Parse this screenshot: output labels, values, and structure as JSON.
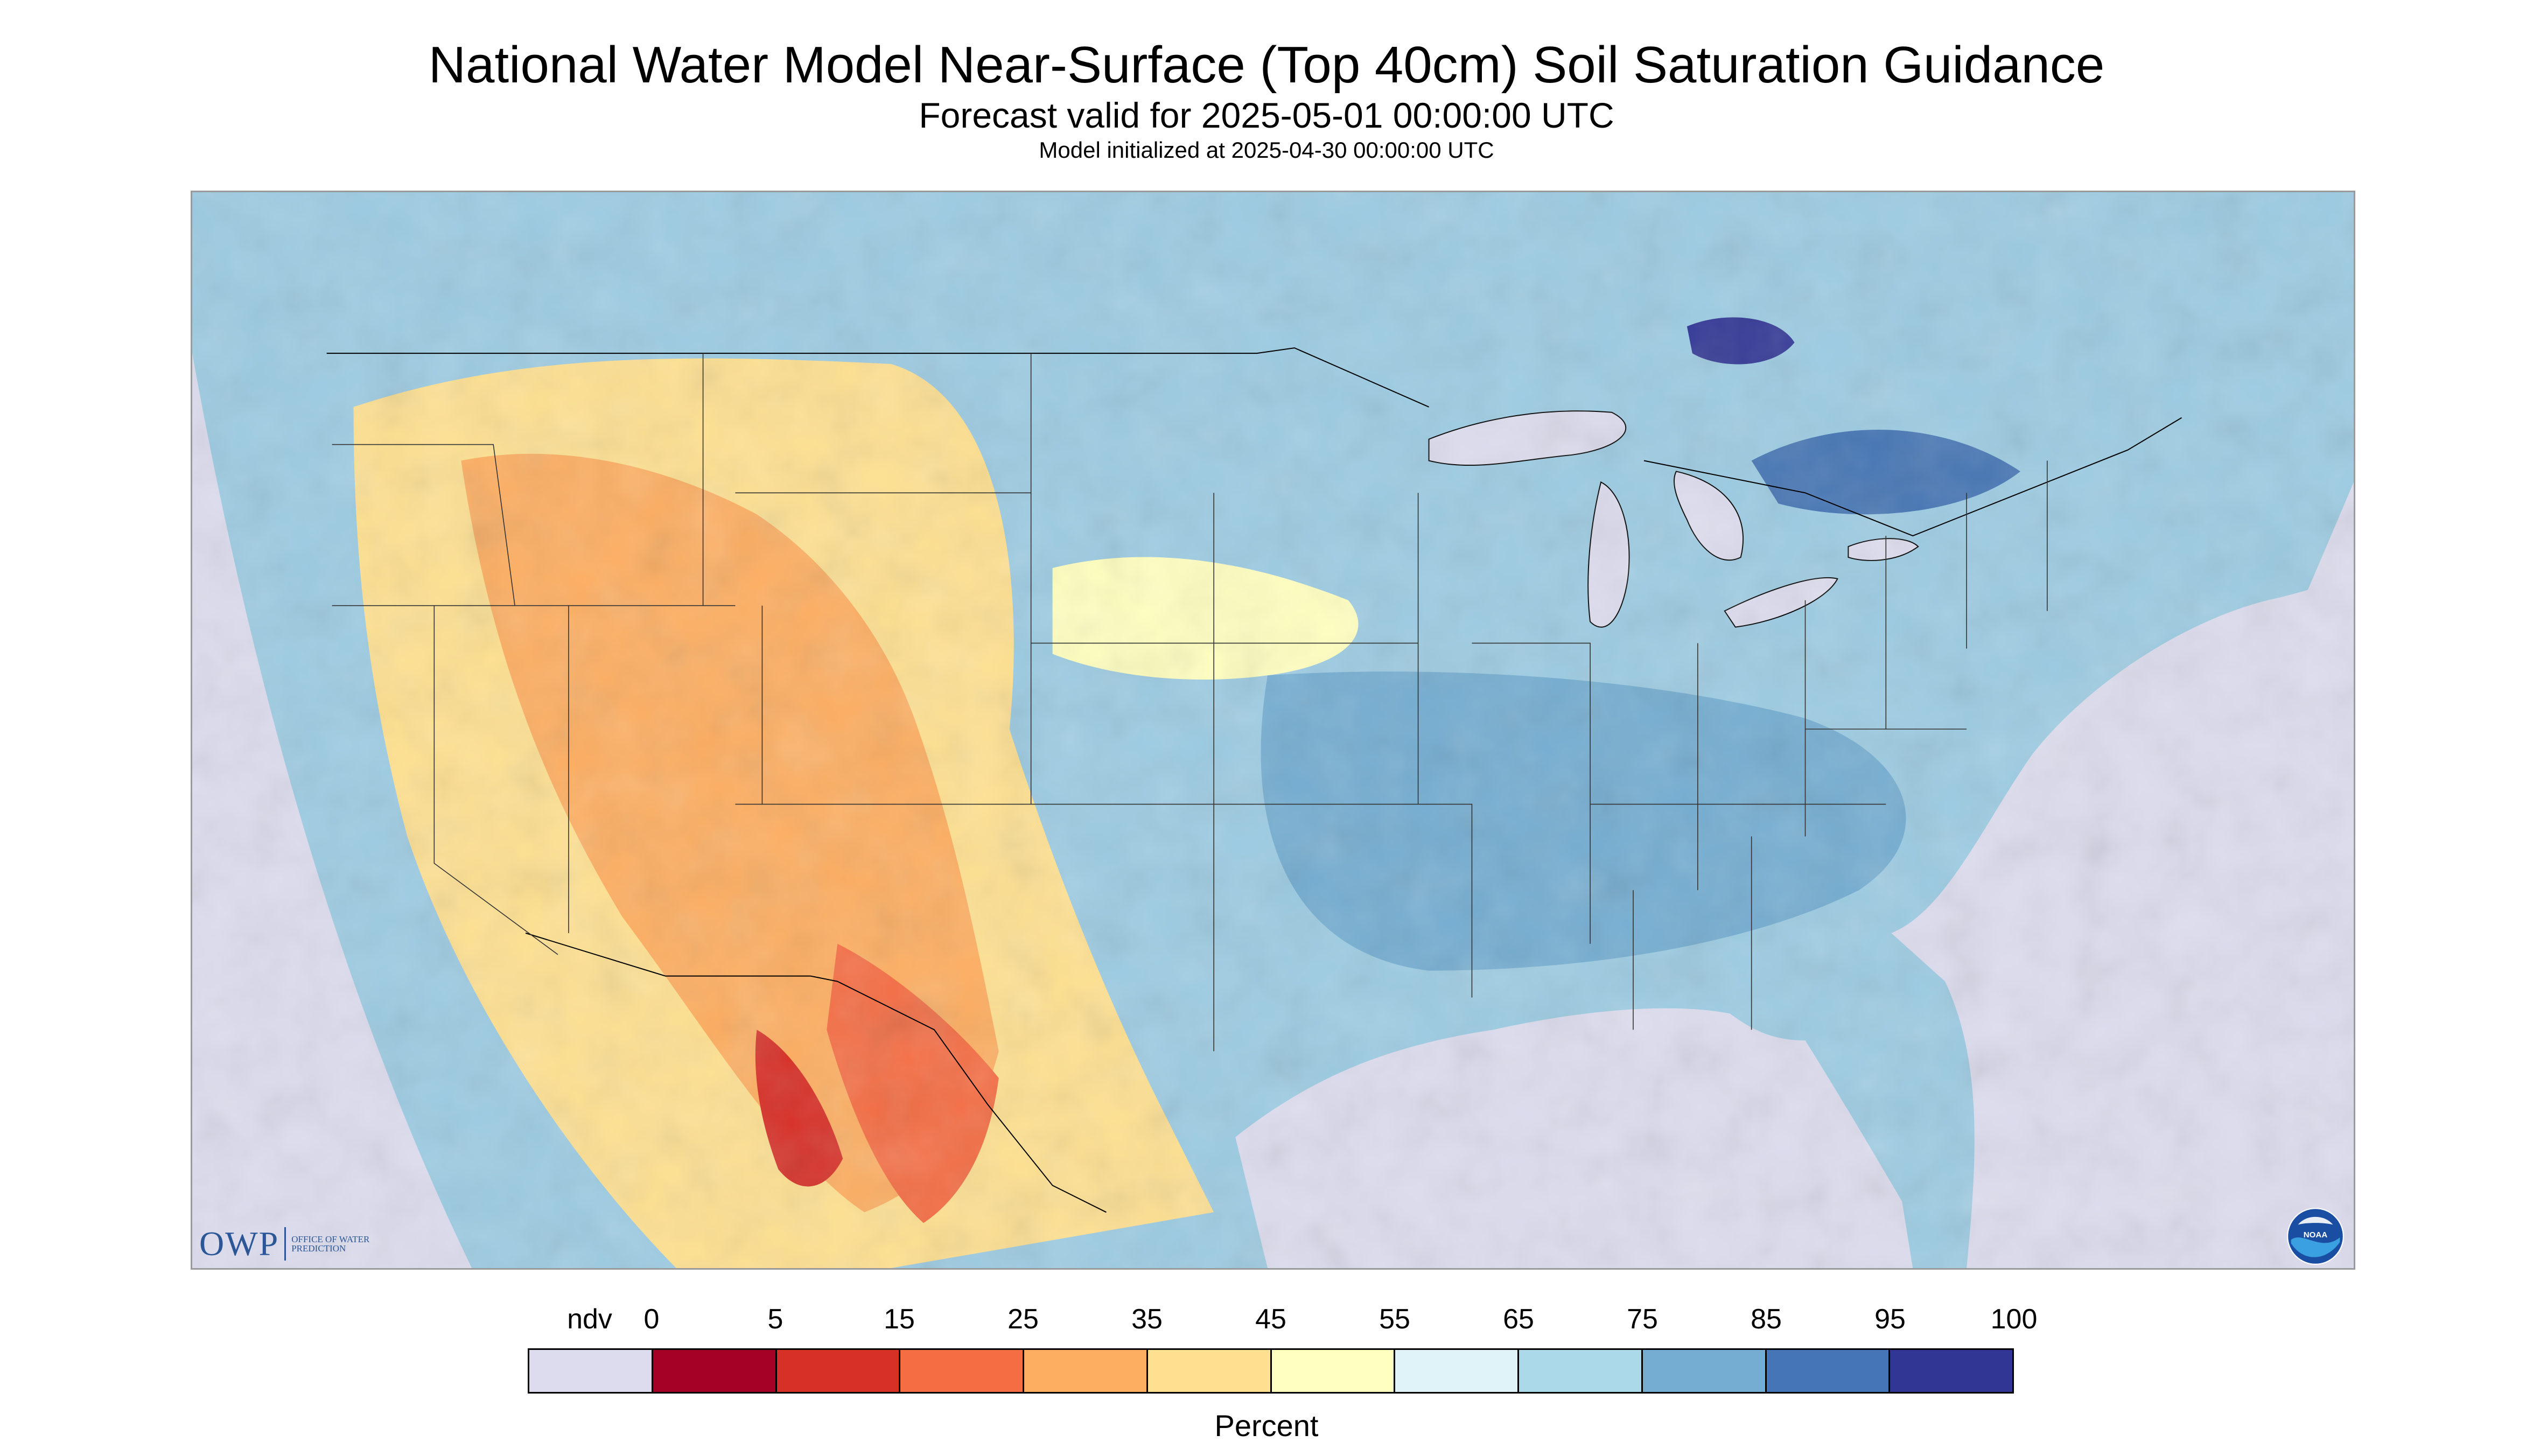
{
  "title": "National Water Model Near-Surface (Top 40cm) Soil Saturation Guidance",
  "subtitle": "Forecast valid for 2025-05-01 00:00:00 UTC",
  "init_line": "Model initialized at 2025-04-30 00:00:00 UTC",
  "map": {
    "variable": "Near-surface soil saturation",
    "region": "Contiguous United States",
    "no_data_color": "#dcdcee",
    "ocean_color": "#dcdcee"
  },
  "logos": {
    "owp_text": "OWP",
    "owp_sub": "Office of Water Prediction",
    "noaa_text": "NOAA"
  },
  "legend": {
    "label": "Percent",
    "ticks": [
      "ndv",
      "0",
      "5",
      "15",
      "25",
      "35",
      "45",
      "55",
      "65",
      "75",
      "85",
      "95",
      "100"
    ],
    "colors": [
      "#dcdcee",
      "#a50026",
      "#d73027",
      "#f46d43",
      "#fdae61",
      "#fee090",
      "#ffffbf",
      "#e0f3f8",
      "#abd9e9",
      "#74add1",
      "#4575b4",
      "#313695"
    ]
  }
}
